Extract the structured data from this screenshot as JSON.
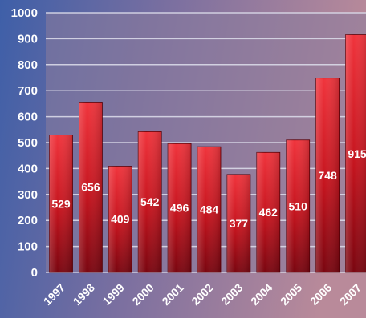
{
  "chart_data": {
    "type": "bar",
    "categories": [
      "1997",
      "1998",
      "1999",
      "2000",
      "2001",
      "2002",
      "2003",
      "2004",
      "2005",
      "2006",
      "2007"
    ],
    "values": [
      529,
      656,
      409,
      542,
      496,
      484,
      377,
      462,
      510,
      748,
      915
    ],
    "value_labels": [
      "529",
      "656",
      "409",
      "542",
      "496",
      "484",
      "377",
      "462",
      "510",
      "748",
      "915"
    ],
    "ylim": [
      0,
      1000
    ],
    "yticks": [
      0,
      100,
      200,
      300,
      400,
      500,
      600,
      700,
      800,
      900,
      1000
    ],
    "ytick_labels": [
      "0",
      "100",
      "200",
      "300",
      "400",
      "500",
      "600",
      "700",
      "800",
      "900",
      "1000"
    ],
    "grid": true,
    "title": "",
    "xlabel": "",
    "ylabel": "",
    "colors": {
      "bar_top": "#f0343c",
      "bar_bottom": "#7a0610",
      "plot_background": "#8a7b9c",
      "page_background_left": "#3e5fa8",
      "page_background_right": "#b98a9a",
      "gridline": "#d9d9e8",
      "text": "#ffffff"
    }
  }
}
